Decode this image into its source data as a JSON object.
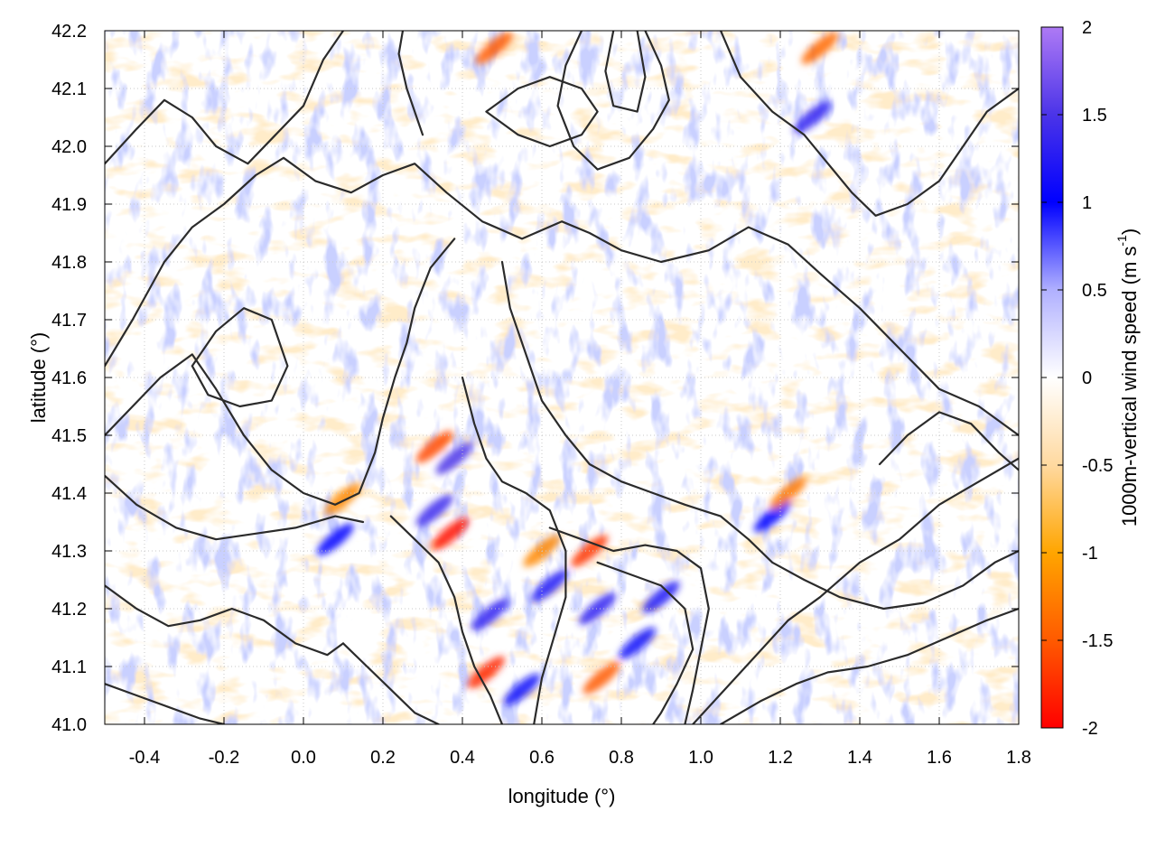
{
  "chart_data": {
    "type": "heatmap",
    "title": "",
    "xlabel": "longitude (°)",
    "ylabel": "latitude (°)",
    "colorbar_label": "1000m-vertical wind speed (m s",
    "colorbar_label_sup": "-1",
    "colorbar_label_end": ")",
    "xlim": [
      -0.5,
      1.8
    ],
    "ylim": [
      41.0,
      42.2
    ],
    "clim": [
      -2,
      2
    ],
    "x_ticks": [
      -0.4,
      -0.2,
      0.0,
      0.2,
      0.4,
      0.6,
      0.8,
      1.0,
      1.2,
      1.4,
      1.6,
      1.8
    ],
    "x_tick_labels": [
      "-0.4",
      "-0.2",
      "0.0",
      "0.2",
      "0.4",
      "0.6",
      "0.8",
      "1.0",
      "1.2",
      "1.4",
      "1.6",
      "1.8"
    ],
    "y_ticks": [
      41.0,
      41.1,
      41.2,
      41.3,
      41.4,
      41.5,
      41.6,
      41.7,
      41.8,
      41.9,
      42.0,
      42.1,
      42.2
    ],
    "y_tick_labels": [
      "41.0",
      "41.1",
      "41.2",
      "41.3",
      "41.4",
      "41.5",
      "41.6",
      "41.7",
      "41.8",
      "41.9",
      "42.0",
      "42.1",
      "42.2"
    ],
    "colorbar_ticks": [
      -2,
      -1.5,
      -1,
      -0.5,
      0,
      0.5,
      1,
      1.5,
      2
    ],
    "colorbar_tick_labels": [
      "-2",
      "-1.5",
      "-1",
      "-0.5",
      "0",
      "0.5",
      "1",
      "1.5",
      "2"
    ],
    "colormap": [
      {
        "value": -2,
        "color": "#ff0000"
      },
      {
        "value": -1.5,
        "color": "#ff5a00"
      },
      {
        "value": -1,
        "color": "#ffa500"
      },
      {
        "value": -0.5,
        "color": "#ffd9a0"
      },
      {
        "value": 0,
        "color": "#ffffff"
      },
      {
        "value": 0.5,
        "color": "#b0b0ff"
      },
      {
        "value": 1,
        "color": "#0000ff"
      },
      {
        "value": 1.5,
        "color": "#4b34e8"
      },
      {
        "value": 2,
        "color": "#ae7af5"
      }
    ],
    "grid": true,
    "features": {
      "strong_updrafts_blue": [
        {
          "lon": 0.38,
          "lat": 41.46,
          "value": 1.5
        },
        {
          "lon": 0.33,
          "lat": 41.37,
          "value": 1.4
        },
        {
          "lon": 0.47,
          "lat": 41.19,
          "value": 1.3
        },
        {
          "lon": 0.74,
          "lat": 41.2,
          "value": 1.3
        },
        {
          "lon": 0.9,
          "lat": 41.22,
          "value": 1.2
        },
        {
          "lon": 0.62,
          "lat": 41.24,
          "value": 1.2
        },
        {
          "lon": 1.28,
          "lat": 42.05,
          "value": 1.3
        },
        {
          "lon": 0.08,
          "lat": 41.32,
          "value": 1.0
        },
        {
          "lon": 0.55,
          "lat": 41.06,
          "value": 1.1
        },
        {
          "lon": 0.84,
          "lat": 41.14,
          "value": 1.1
        },
        {
          "lon": 1.18,
          "lat": 41.36,
          "value": 1.0
        }
      ],
      "strong_downdrafts_red": [
        {
          "lon": 0.37,
          "lat": 41.33,
          "value": -1.9
        },
        {
          "lon": 0.33,
          "lat": 41.48,
          "value": -1.6
        },
        {
          "lon": 0.72,
          "lat": 41.3,
          "value": -1.7
        },
        {
          "lon": 0.46,
          "lat": 41.09,
          "value": -1.8
        },
        {
          "lon": 0.75,
          "lat": 41.08,
          "value": -1.5
        },
        {
          "lon": 0.48,
          "lat": 42.17,
          "value": -1.5
        },
        {
          "lon": 1.22,
          "lat": 41.4,
          "value": -1.3
        },
        {
          "lon": 0.1,
          "lat": 41.39,
          "value": -1.2
        },
        {
          "lon": 0.6,
          "lat": 41.3,
          "value": -1.2
        },
        {
          "lon": 1.3,
          "lat": 42.17,
          "value": -1.4
        }
      ]
    },
    "contours": [
      [
        [
          -0.5,
          41.97
        ],
        [
          -0.42,
          42.03
        ],
        [
          -0.35,
          42.08
        ],
        [
          -0.28,
          42.05
        ],
        [
          -0.22,
          42.0
        ],
        [
          -0.14,
          41.97
        ],
        [
          -0.07,
          42.02
        ],
        [
          0.0,
          42.07
        ],
        [
          0.05,
          42.15
        ],
        [
          0.1,
          42.2
        ]
      ],
      [
        [
          -0.5,
          41.62
        ],
        [
          -0.43,
          41.7
        ],
        [
          -0.35,
          41.8
        ],
        [
          -0.28,
          41.86
        ],
        [
          -0.2,
          41.9
        ],
        [
          -0.12,
          41.95
        ],
        [
          -0.05,
          41.98
        ],
        [
          0.03,
          41.94
        ],
        [
          0.12,
          41.92
        ],
        [
          0.2,
          41.95
        ],
        [
          0.28,
          41.97
        ],
        [
          0.36,
          41.92
        ],
        [
          0.45,
          41.87
        ],
        [
          0.55,
          41.84
        ],
        [
          0.65,
          41.87
        ],
        [
          0.72,
          41.85
        ],
        [
          0.8,
          41.82
        ],
        [
          0.9,
          41.8
        ],
        [
          1.02,
          41.82
        ],
        [
          1.12,
          41.86
        ],
        [
          1.22,
          41.83
        ],
        [
          1.3,
          41.78
        ],
        [
          1.4,
          41.72
        ],
        [
          1.5,
          41.65
        ],
        [
          1.6,
          41.58
        ],
        [
          1.7,
          41.55
        ],
        [
          1.8,
          41.5
        ]
      ],
      [
        [
          -0.5,
          41.5
        ],
        [
          -0.43,
          41.55
        ],
        [
          -0.36,
          41.6
        ],
        [
          -0.28,
          41.64
        ],
        [
          -0.22,
          41.58
        ],
        [
          -0.15,
          41.5
        ],
        [
          -0.08,
          41.44
        ],
        [
          0.0,
          41.4
        ],
        [
          0.08,
          41.38
        ],
        [
          0.14,
          41.4
        ],
        [
          0.18,
          41.47
        ],
        [
          0.2,
          41.53
        ],
        [
          0.23,
          41.6
        ],
        [
          0.26,
          41.66
        ],
        [
          0.28,
          41.72
        ],
        [
          0.32,
          41.79
        ],
        [
          0.38,
          41.84
        ]
      ],
      [
        [
          -0.5,
          41.43
        ],
        [
          -0.42,
          41.38
        ],
        [
          -0.32,
          41.34
        ],
        [
          -0.22,
          41.32
        ],
        [
          -0.12,
          41.33
        ],
        [
          -0.02,
          41.34
        ],
        [
          0.08,
          41.36
        ],
        [
          0.15,
          41.35
        ]
      ],
      [
        [
          0.5,
          41.8
        ],
        [
          0.52,
          41.72
        ],
        [
          0.56,
          41.64
        ],
        [
          0.6,
          41.56
        ],
        [
          0.66,
          41.5
        ],
        [
          0.72,
          41.45
        ],
        [
          0.8,
          41.42
        ],
        [
          0.88,
          41.4
        ],
        [
          0.96,
          41.38
        ],
        [
          1.05,
          41.36
        ],
        [
          1.12,
          41.32
        ],
        [
          1.18,
          41.28
        ],
        [
          1.26,
          41.25
        ],
        [
          1.35,
          41.22
        ],
        [
          1.46,
          41.2
        ],
        [
          1.56,
          41.21
        ],
        [
          1.66,
          41.24
        ],
        [
          1.74,
          41.28
        ],
        [
          1.8,
          41.3
        ]
      ],
      [
        [
          0.4,
          41.6
        ],
        [
          0.43,
          41.52
        ],
        [
          0.46,
          41.46
        ],
        [
          0.5,
          41.42
        ],
        [
          0.56,
          41.4
        ],
        [
          0.62,
          41.37
        ],
        [
          0.66,
          41.3
        ],
        [
          0.66,
          41.22
        ],
        [
          0.63,
          41.15
        ],
        [
          0.6,
          41.08
        ],
        [
          0.58,
          41.0
        ]
      ],
      [
        [
          0.22,
          41.36
        ],
        [
          0.28,
          41.32
        ],
        [
          0.34,
          41.28
        ],
        [
          0.38,
          41.22
        ],
        [
          0.4,
          41.16
        ],
        [
          0.43,
          41.1
        ],
        [
          0.47,
          41.05
        ],
        [
          0.5,
          41.0
        ]
      ],
      [
        [
          0.62,
          41.34
        ],
        [
          0.7,
          41.32
        ],
        [
          0.78,
          41.3
        ],
        [
          0.86,
          41.31
        ],
        [
          0.94,
          41.3
        ],
        [
          1.0,
          41.27
        ],
        [
          1.02,
          41.2
        ],
        [
          1.0,
          41.13
        ],
        [
          0.98,
          41.06
        ],
        [
          0.96,
          41.0
        ]
      ],
      [
        [
          0.74,
          41.28
        ],
        [
          0.82,
          41.26
        ],
        [
          0.9,
          41.24
        ],
        [
          0.96,
          41.2
        ],
        [
          0.98,
          41.13
        ],
        [
          0.94,
          41.07
        ],
        [
          0.9,
          41.02
        ],
        [
          0.88,
          41.0
        ]
      ],
      [
        [
          0.98,
          41.0
        ],
        [
          1.06,
          41.06
        ],
        [
          1.14,
          41.12
        ],
        [
          1.22,
          41.18
        ],
        [
          1.3,
          41.22
        ],
        [
          1.4,
          41.28
        ],
        [
          1.5,
          41.32
        ],
        [
          1.6,
          41.38
        ],
        [
          1.7,
          41.42
        ],
        [
          1.8,
          41.46
        ]
      ],
      [
        [
          1.05,
          41.0
        ],
        [
          1.15,
          41.04
        ],
        [
          1.24,
          41.07
        ],
        [
          1.32,
          41.09
        ],
        [
          1.42,
          41.1
        ],
        [
          1.52,
          41.12
        ],
        [
          1.62,
          41.15
        ],
        [
          1.72,
          41.18
        ],
        [
          1.8,
          41.2
        ]
      ],
      [
        [
          0.7,
          42.2
        ],
        [
          0.66,
          42.14
        ],
        [
          0.64,
          42.07
        ],
        [
          0.68,
          42.0
        ],
        [
          0.74,
          41.96
        ],
        [
          0.82,
          41.98
        ],
        [
          0.88,
          42.03
        ],
        [
          0.92,
          42.08
        ],
        [
          0.9,
          42.14
        ],
        [
          0.86,
          42.2
        ]
      ],
      [
        [
          0.78,
          42.2
        ],
        [
          0.76,
          42.13
        ],
        [
          0.78,
          42.07
        ],
        [
          0.84,
          42.06
        ],
        [
          0.86,
          42.12
        ],
        [
          0.84,
          42.2
        ]
      ],
      [
        [
          1.05,
          42.2
        ],
        [
          1.1,
          42.12
        ],
        [
          1.18,
          42.06
        ],
        [
          1.26,
          42.02
        ],
        [
          1.32,
          41.97
        ],
        [
          1.38,
          41.92
        ],
        [
          1.44,
          41.88
        ],
        [
          1.52,
          41.9
        ],
        [
          1.6,
          41.94
        ],
        [
          1.66,
          42.0
        ],
        [
          1.72,
          42.06
        ],
        [
          1.8,
          42.1
        ]
      ],
      [
        [
          1.45,
          41.45
        ],
        [
          1.52,
          41.5
        ],
        [
          1.6,
          41.54
        ],
        [
          1.68,
          41.52
        ],
        [
          1.75,
          41.47
        ],
        [
          1.8,
          41.44
        ]
      ],
      [
        [
          -0.28,
          41.62
        ],
        [
          -0.22,
          41.68
        ],
        [
          -0.15,
          41.72
        ],
        [
          -0.08,
          41.7
        ],
        [
          -0.04,
          41.62
        ],
        [
          -0.08,
          41.56
        ],
        [
          -0.16,
          41.55
        ],
        [
          -0.24,
          41.57
        ],
        [
          -0.28,
          41.62
        ]
      ],
      [
        [
          0.1,
          41.14
        ],
        [
          0.16,
          41.1
        ],
        [
          0.22,
          41.06
        ],
        [
          0.28,
          41.02
        ],
        [
          0.34,
          41.0
        ]
      ],
      [
        [
          -0.5,
          41.24
        ],
        [
          -0.42,
          41.2
        ],
        [
          -0.34,
          41.17
        ],
        [
          -0.26,
          41.18
        ],
        [
          -0.18,
          41.2
        ],
        [
          -0.1,
          41.18
        ],
        [
          -0.02,
          41.14
        ],
        [
          0.06,
          41.12
        ],
        [
          0.1,
          41.14
        ]
      ],
      [
        [
          -0.5,
          41.07
        ],
        [
          -0.42,
          41.05
        ],
        [
          -0.34,
          41.03
        ],
        [
          -0.26,
          41.01
        ],
        [
          -0.2,
          41.0
        ]
      ],
      [
        [
          0.3,
          42.02
        ],
        [
          0.26,
          42.1
        ],
        [
          0.24,
          42.16
        ],
        [
          0.25,
          42.2
        ]
      ],
      [
        [
          0.46,
          42.06
        ],
        [
          0.54,
          42.1
        ],
        [
          0.62,
          42.12
        ],
        [
          0.7,
          42.1
        ],
        [
          0.74,
          42.06
        ],
        [
          0.7,
          42.02
        ],
        [
          0.62,
          42.0
        ],
        [
          0.54,
          42.02
        ],
        [
          0.46,
          42.06
        ]
      ]
    ]
  }
}
